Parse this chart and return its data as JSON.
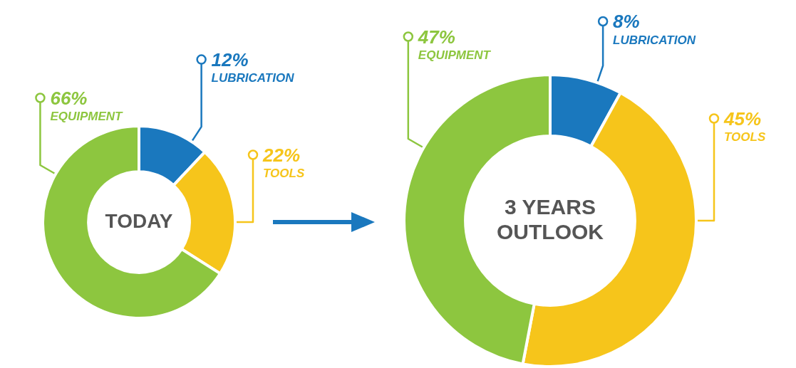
{
  "chart_data": [
    {
      "type": "donut",
      "title": "TODAY",
      "legend": "top",
      "categories": [
        "LUBRICATION",
        "TOOLS",
        "EQUIPMENT"
      ],
      "values": [
        12,
        22,
        66
      ],
      "colors": [
        "#1a78be",
        "#f6c51b",
        "#8dc63f"
      ],
      "value_labels": [
        "12%",
        "22%",
        "66%"
      ]
    },
    {
      "type": "donut",
      "title": "3 YEARS OUTLOOK",
      "legend": "top",
      "categories": [
        "LUBRICATION",
        "TOOLS",
        "EQUIPMENT"
      ],
      "values": [
        8,
        45,
        47
      ],
      "colors": [
        "#1a78be",
        "#f6c51b",
        "#8dc63f"
      ],
      "value_labels": [
        "8%",
        "45%",
        "47%"
      ]
    }
  ]
}
